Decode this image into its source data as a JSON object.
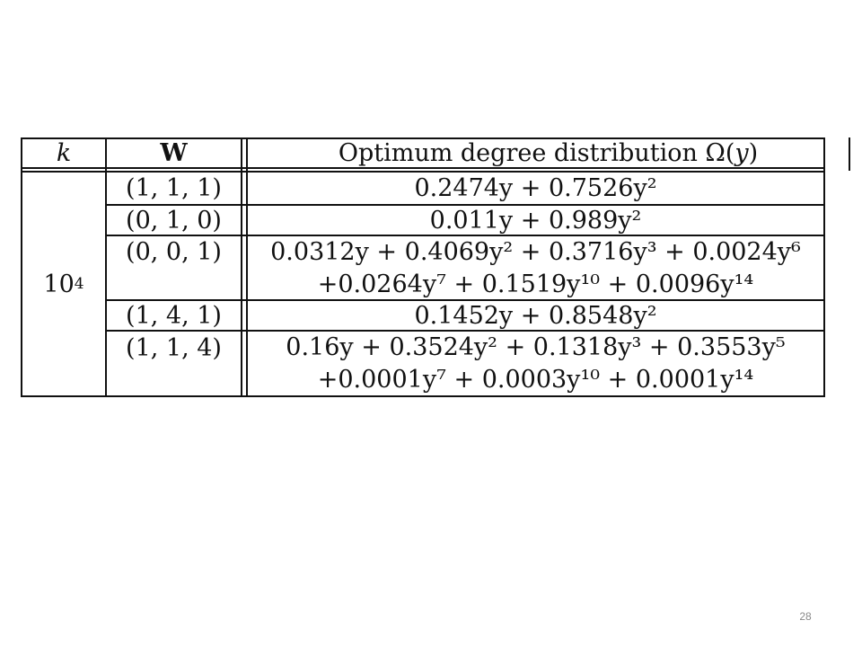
{
  "table": {
    "headers": {
      "k": "k",
      "w": "W",
      "omega_prefix": "Optimum degree distribution ",
      "omega_symbol": "Ω(",
      "omega_var": "y",
      "omega_close": ")"
    },
    "k_value_base": "10",
    "k_value_exp": "4",
    "rows": [
      {
        "w": "(1, 1, 1)",
        "omega_line1": "0.2474y + 0.7526y²",
        "omega_line2": ""
      },
      {
        "w": "(0, 1, 0)",
        "omega_line1": "0.011y + 0.989y²",
        "omega_line2": ""
      },
      {
        "w": "(0, 0, 1)",
        "omega_line1": "0.0312y + 0.4069y² + 0.3716y³ + 0.0024y⁶",
        "omega_line2": "+0.0264y⁷ + 0.1519y¹⁰ + 0.0096y¹⁴"
      },
      {
        "w": "(1, 4, 1)",
        "omega_line1": "0.1452y + 0.8548y²",
        "omega_line2": ""
      },
      {
        "w": "(1, 1, 4)",
        "omega_line1": "0.16y + 0.3524y² + 0.1318y³ + 0.3553y⁵",
        "omega_line2": "+0.0001y⁷ + 0.0003y¹⁰ + 0.0001y¹⁴"
      }
    ]
  },
  "slide_number": "28"
}
